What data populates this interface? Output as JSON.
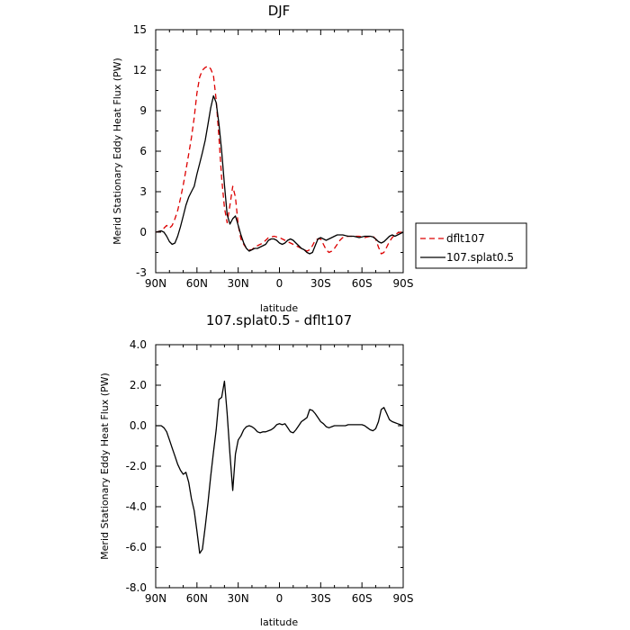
{
  "chart_data": [
    {
      "type": "line",
      "title": "DJF",
      "xlabel": "latitude",
      "ylabel": "Merid Stationary Eddy Heat Flux (PW)",
      "xlim": [
        90,
        -90
      ],
      "ylim": [
        -3,
        15
      ],
      "x_ticks": [
        90,
        60,
        30,
        0,
        -30,
        -60,
        -90
      ],
      "x_tick_labels": [
        "90N",
        "60N",
        "30N",
        "0",
        "30S",
        "60S",
        "90S"
      ],
      "y_ticks": [
        -3,
        0,
        3,
        6,
        9,
        12,
        15
      ],
      "y_tick_labels": [
        "-3",
        "0",
        "3",
        "6",
        "9",
        "12",
        "15"
      ],
      "legend_position": "right",
      "series": [
        {
          "name": "dflt107",
          "color": "#dd0000",
          "dash": "dashed",
          "x": [
            90,
            86,
            84,
            82,
            80,
            78,
            76,
            74,
            72,
            70,
            68,
            66,
            64,
            62,
            60,
            58,
            56,
            54,
            52,
            50,
            48,
            46,
            44,
            42,
            40,
            38,
            36,
            34,
            32,
            30,
            28,
            26,
            24,
            22,
            20,
            18,
            16,
            14,
            12,
            10,
            8,
            6,
            4,
            2,
            0,
            -2,
            -4,
            -6,
            -8,
            -10,
            -12,
            -14,
            -16,
            -18,
            -20,
            -22,
            -24,
            -26,
            -28,
            -30,
            -32,
            -34,
            -36,
            -38,
            -40,
            -42,
            -44,
            -46,
            -48,
            -50,
            -52,
            -54,
            -56,
            -58,
            -60,
            -62,
            -64,
            -66,
            -68,
            -70,
            -72,
            -74,
            -76,
            -78,
            -80,
            -82,
            -84,
            -86,
            -88,
            -90
          ],
          "y": [
            0,
            0.1,
            0.3,
            0.5,
            0.3,
            0.5,
            1.0,
            1.6,
            2.5,
            3.5,
            4.6,
            5.8,
            7.0,
            8.5,
            10.3,
            11.5,
            12.0,
            12.2,
            12.3,
            12.1,
            11.6,
            9.8,
            7.0,
            4.0,
            1.8,
            0.7,
            2.0,
            3.4,
            2.6,
            0.5,
            -0.5,
            -0.9,
            -1.2,
            -1.3,
            -1.3,
            -1.1,
            -1.0,
            -0.9,
            -0.8,
            -0.6,
            -0.4,
            -0.35,
            -0.3,
            -0.35,
            -0.4,
            -0.5,
            -0.6,
            -0.7,
            -0.8,
            -0.9,
            -1.0,
            -1.1,
            -1.2,
            -1.3,
            -1.4,
            -1.3,
            -1.0,
            -0.6,
            -0.5,
            -0.5,
            -0.9,
            -1.3,
            -1.5,
            -1.4,
            -1.2,
            -0.9,
            -0.6,
            -0.4,
            -0.35,
            -0.3,
            -0.3,
            -0.3,
            -0.3,
            -0.3,
            -0.35,
            -0.4,
            -0.35,
            -0.3,
            -0.3,
            -0.5,
            -1.1,
            -1.6,
            -1.5,
            -1.1,
            -0.7,
            -0.4,
            -0.2,
            -0.05,
            0,
            0
          ]
        },
        {
          "name": "107.splat0.5",
          "color": "#000000",
          "dash": "solid",
          "x": [
            90,
            86,
            84,
            82,
            80,
            78,
            76,
            74,
            72,
            70,
            68,
            66,
            64,
            62,
            60,
            58,
            56,
            54,
            52,
            50,
            48,
            46,
            44,
            42,
            40,
            38,
            36,
            34,
            32,
            30,
            28,
            26,
            24,
            22,
            20,
            18,
            16,
            14,
            12,
            10,
            8,
            6,
            4,
            2,
            0,
            -2,
            -4,
            -6,
            -8,
            -10,
            -12,
            -14,
            -16,
            -18,
            -20,
            -22,
            -24,
            -26,
            -28,
            -30,
            -32,
            -34,
            -36,
            -38,
            -40,
            -42,
            -44,
            -46,
            -48,
            -50,
            -52,
            -54,
            -56,
            -58,
            -60,
            -62,
            -64,
            -66,
            -68,
            -70,
            -72,
            -74,
            -76,
            -78,
            -80,
            -82,
            -84,
            -86,
            -88,
            -90
          ],
          "y": [
            0,
            0.1,
            0,
            -0.3,
            -0.7,
            -0.9,
            -0.8,
            -0.3,
            0.4,
            1.2,
            2.0,
            2.6,
            3.0,
            3.4,
            4.3,
            5.1,
            5.9,
            6.8,
            8.0,
            9.2,
            10.1,
            9.6,
            8.0,
            6.0,
            3.5,
            1.3,
            0.6,
            1.0,
            1.2,
            0.5,
            -0.2,
            -0.8,
            -1.2,
            -1.4,
            -1.3,
            -1.2,
            -1.2,
            -1.1,
            -1.0,
            -0.9,
            -0.6,
            -0.5,
            -0.5,
            -0.6,
            -0.8,
            -0.9,
            -0.8,
            -0.6,
            -0.5,
            -0.6,
            -0.8,
            -1.0,
            -1.2,
            -1.3,
            -1.5,
            -1.6,
            -1.5,
            -1.0,
            -0.5,
            -0.4,
            -0.5,
            -0.6,
            -0.5,
            -0.4,
            -0.3,
            -0.2,
            -0.2,
            -0.2,
            -0.25,
            -0.3,
            -0.3,
            -0.3,
            -0.35,
            -0.4,
            -0.35,
            -0.3,
            -0.3,
            -0.3,
            -0.35,
            -0.5,
            -0.7,
            -0.8,
            -0.7,
            -0.5,
            -0.3,
            -0.2,
            -0.3,
            -0.2,
            -0.1,
            0
          ]
        }
      ]
    },
    {
      "type": "line",
      "title": "107.splat0.5 - dflt107",
      "xlabel": "latitude",
      "ylabel": "Merid Stationary Eddy Heat Flux (PW)",
      "xlim": [
        90,
        -90
      ],
      "ylim": [
        -8,
        4
      ],
      "x_ticks": [
        90,
        60,
        30,
        0,
        -30,
        -60,
        -90
      ],
      "x_tick_labels": [
        "90N",
        "60N",
        "30N",
        "0",
        "30S",
        "60S",
        "90S"
      ],
      "y_ticks": [
        -8,
        -6,
        -4,
        -2,
        0,
        2,
        4
      ],
      "y_tick_labels": [
        "-8.0",
        "-6.0",
        "-4.0",
        "-2.0",
        "0.0",
        "2.0",
        "4.0"
      ],
      "series": [
        {
          "name": "",
          "color": "#000000",
          "dash": "solid",
          "x": [
            90,
            86,
            84,
            82,
            80,
            78,
            76,
            74,
            72,
            70,
            68,
            66,
            64,
            62,
            60,
            58,
            56,
            54,
            52,
            50,
            48,
            46,
            44,
            42,
            40,
            38,
            36,
            34,
            32,
            30,
            28,
            26,
            24,
            22,
            20,
            18,
            16,
            14,
            12,
            10,
            8,
            6,
            4,
            2,
            0,
            -2,
            -4,
            -6,
            -8,
            -10,
            -12,
            -14,
            -16,
            -18,
            -20,
            -22,
            -24,
            -26,
            -28,
            -30,
            -32,
            -34,
            -36,
            -38,
            -40,
            -42,
            -44,
            -46,
            -48,
            -50,
            -52,
            -54,
            -56,
            -58,
            -60,
            -62,
            -64,
            -66,
            -68,
            -70,
            -72,
            -74,
            -76,
            -78,
            -80,
            -82,
            -84,
            -86,
            -88,
            -90
          ],
          "y": [
            0,
            0,
            -0.1,
            -0.3,
            -0.7,
            -1.1,
            -1.5,
            -1.9,
            -2.2,
            -2.4,
            -2.3,
            -2.8,
            -3.6,
            -4.2,
            -5.2,
            -6.3,
            -6.1,
            -5.0,
            -3.8,
            -2.5,
            -1.3,
            -0.2,
            1.3,
            1.4,
            2.2,
            0.6,
            -1.4,
            -3.2,
            -1.4,
            -0.7,
            -0.5,
            -0.2,
            -0.05,
            0,
            -0.05,
            -0.15,
            -0.3,
            -0.35,
            -0.3,
            -0.3,
            -0.25,
            -0.2,
            -0.1,
            0.05,
            0.1,
            0.05,
            0.1,
            -0.1,
            -0.3,
            -0.35,
            -0.2,
            0,
            0.2,
            0.3,
            0.4,
            0.8,
            0.75,
            0.6,
            0.4,
            0.2,
            0.1,
            -0.05,
            -0.1,
            -0.05,
            0,
            0,
            0,
            0,
            0,
            0.05,
            0.05,
            0.05,
            0.05,
            0.05,
            0.05,
            0,
            -0.1,
            -0.2,
            -0.25,
            -0.15,
            0.2,
            0.8,
            0.9,
            0.6,
            0.3,
            0.2,
            0.15,
            0.1,
            0.05,
            0
          ]
        }
      ]
    }
  ]
}
